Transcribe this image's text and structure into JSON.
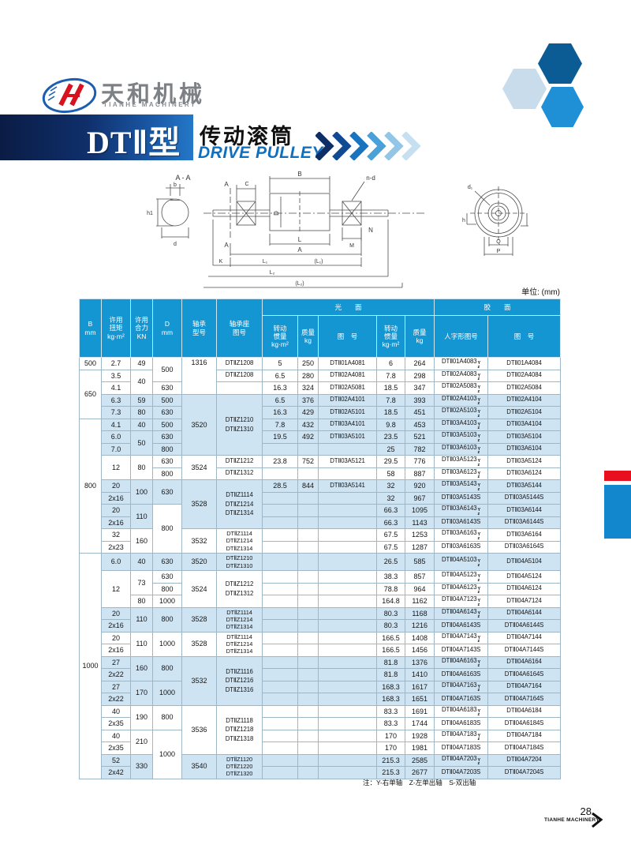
{
  "page": {
    "unit_label": "单位: (mm)",
    "note": "注：Y-右单轴　Z-左单出轴　S-双出轴",
    "page_number": "28",
    "footer_brand": "TIANHE MACHINERY"
  },
  "logo": {
    "name_cn": "天和机械",
    "name_en": "TIANHE MACHINERY"
  },
  "banner": {
    "model": "DTⅡ型",
    "product_cn": "传动滚筒",
    "product_en": "DRIVE PULLEY"
  },
  "drawing": {
    "labels": {
      "section": "A - A",
      "b": "b",
      "h1": "h1",
      "d": "d",
      "a_top": "A",
      "a_bottom": "A",
      "c": "C",
      "bdim": "B",
      "nd": "n-d",
      "ddim": "D",
      "n": "N",
      "m": "M",
      "l": "L",
      "abig": "A",
      "k": "K",
      "l1": "L₁",
      "l1p": "(L₁)",
      "l2": "L₂",
      "l2p": "(L₂)",
      "d1": "d₁",
      "h": "h",
      "hcap": "H",
      "q": "Q",
      "p": "P"
    }
  },
  "table": {
    "header": {
      "b": "B\nmm",
      "torque": "许用\n扭矩\nkg·m²",
      "force": "许用\n合力\nKN",
      "d": "D\nmm",
      "bearing": "轴承\n型号",
      "seat": "轴承座\n图号",
      "group_smooth": "光　　面",
      "group_rubber": "胶　　面",
      "inertia": "转动\n惯量\nkg·m²",
      "mass": "质量\nkg",
      "dwg": "图　号",
      "inertia2": "转动\n惯量\nkg·m²",
      "mass2": "质量\nkg",
      "herringbone": "人字形图号",
      "dwg2": "图　号"
    },
    "rows": [
      {
        "cells": [
          "500",
          "2.7",
          "49",
          {
            "t": "500",
            "rs": 2
          },
          {
            "t": "1316",
            "rs": 3,
            "top": true
          },
          "DTⅡZ1208",
          "5",
          "250",
          "DTⅡ01A4081",
          "6",
          "264",
          {
            "t": "DTⅡ01A4083",
            "yz": true
          },
          "DTⅡ01A4084"
        ]
      },
      {
        "sep": true,
        "cells": [
          {
            "t": "650",
            "rs": 4,
            "w": true
          },
          "3.5",
          {
            "t": "40",
            "rs": 2
          },
          "DTⅡZ1208",
          "6.5",
          "280",
          "DTⅡ02A4081",
          "7.8",
          "298",
          {
            "t": "DTⅡ02A4083",
            "yz": true
          },
          "DTⅡ02A4084"
        ]
      },
      {
        "cells": [
          "4.1",
          "630",
          "",
          "16.3",
          "324",
          "DTⅡ02A5081",
          "18.5",
          "347",
          {
            "t": "DTⅡ02A5083",
            "yz": true
          },
          "DTⅡ02A5084"
        ]
      },
      {
        "shade": true,
        "cells": [
          "6.3",
          "59",
          "500",
          {
            "t": "3520",
            "rs": 5
          },
          {
            "t": "DTⅡZ1210\nDTⅡZ1310",
            "rs": 5,
            "ml": true
          },
          "6.5",
          "376",
          "DTⅡ02A4101",
          "7.8",
          "393",
          {
            "t": "DTⅡ02A4103",
            "yz": true
          },
          "DTⅡ02A4104"
        ]
      },
      {
        "shade": true,
        "cells": [
          "7.3",
          "80",
          "630",
          "16.3",
          "429",
          "DTⅡ02A5101",
          "18.5",
          "451",
          {
            "t": "DTⅡ02A5103",
            "yz": true
          },
          "DTⅡ02A5104"
        ]
      },
      {
        "shade": true,
        "sep": true,
        "cells": [
          {
            "t": "800",
            "rs": 11,
            "w": true
          },
          "4.1",
          "40",
          "500",
          "7.8",
          "432",
          "DTⅡ03A4101",
          "9.8",
          "453",
          {
            "t": "DTⅡ03A4103",
            "yz": true
          },
          "DTⅡ03A4104"
        ]
      },
      {
        "shade": true,
        "cells": [
          "6.0",
          {
            "t": "50",
            "rs": 2
          },
          "630",
          "19.5",
          "492",
          "DTⅡ03A5101",
          "23.5",
          "521",
          {
            "t": "DTⅡ03A5103",
            "yz": true
          },
          "DTⅡ03A5104"
        ]
      },
      {
        "shade": true,
        "cells": [
          "7.0",
          "800",
          "",
          "",
          "",
          "25",
          "782",
          {
            "t": "DTⅡ03A6103",
            "yz": true
          },
          "DTⅡ03A6104"
        ]
      },
      {
        "cells": [
          {
            "t": "12",
            "rs": 2
          },
          {
            "t": "80",
            "rs": 2
          },
          "630",
          {
            "t": "3524",
            "rs": 2
          },
          "DTⅡZ1212",
          "23.8",
          "752",
          "DTⅡ03A5121",
          "29.5",
          "776",
          {
            "t": "DTⅡ03A5123",
            "yz": true
          },
          "DTⅡ03A5124"
        ]
      },
      {
        "cells": [
          "800",
          "DTⅡZ1312",
          "",
          "",
          "",
          "58",
          "887",
          {
            "t": "DTⅡ03A6123",
            "yz": true
          },
          "DTⅡ03A6124"
        ]
      },
      {
        "shade": true,
        "cells": [
          "20",
          {
            "t": "100",
            "rs": 2
          },
          {
            "t": "630",
            "rs": 2
          },
          {
            "t": "3528",
            "rs": 4
          },
          {
            "t": "DTⅡZ1114\nDTⅡZ1214\nDTⅡZ1314",
            "rs": 4,
            "ml": true
          },
          "28.5",
          "844",
          "DTⅡ03A5141",
          "32",
          "920",
          {
            "t": "DTⅡ03A5143",
            "yz": true
          },
          "DTⅡ03A5144"
        ]
      },
      {
        "shade": true,
        "cells": [
          "2x16",
          "",
          "",
          "",
          "32",
          "967",
          "DTⅡ03A5143S",
          "DTⅡ03A5144S"
        ]
      },
      {
        "shade": true,
        "cells": [
          "20",
          {
            "t": "110",
            "rs": 2
          },
          {
            "t": "800",
            "rs": 4,
            "w": true
          },
          "",
          "",
          "",
          "66.3",
          "1095",
          {
            "t": "DTⅡ03A6143",
            "yz": true
          },
          "DTⅡ03A6144"
        ]
      },
      {
        "shade": true,
        "cells": [
          "2x16",
          "",
          "",
          "",
          "66.3",
          "1143",
          "DTⅡ03A6143S",
          "DTⅡ03A6144S"
        ]
      },
      {
        "cells": [
          "32",
          {
            "t": "160",
            "rs": 2
          },
          {
            "t": "3532",
            "rs": 2
          },
          {
            "t": "DTⅡZ1114\nDTⅡZ1214\nDTⅡZ1314",
            "rs": 2,
            "ml": true,
            "tight": true
          },
          "",
          "",
          "",
          "67.5",
          "1253",
          {
            "t": "DTⅡ03A6163",
            "yz": true
          },
          "DTⅡ03A6164"
        ]
      },
      {
        "cells": [
          "2x23",
          "",
          "",
          "",
          "67.5",
          "1287",
          "DTⅡ03A6163S",
          "DTⅡ03A6164S"
        ]
      },
      {
        "shade": true,
        "sep": true,
        "tall": true,
        "cells": [
          {
            "t": "1000",
            "rs": 18,
            "w": true
          },
          "6.0",
          "40",
          "630",
          "3520",
          {
            "t": "DTⅡZ1210\nDTⅡZ1310",
            "ml": true,
            "tight": true
          },
          "",
          "",
          "",
          "26.5",
          "585",
          {
            "t": "DTⅡ04A5103",
            "yz": true
          },
          "DTⅡ04A5104"
        ]
      },
      {
        "cells": [
          {
            "t": "12",
            "rs": 3
          },
          {
            "t": "73",
            "rs": 2
          },
          "630",
          {
            "t": "3524",
            "rs": 3
          },
          {
            "t": "DTⅡZ1212\nDTⅡZ1312",
            "rs": 3,
            "ml": true
          },
          "",
          "",
          "",
          "38.3",
          "857",
          {
            "t": "DTⅡ04A5123",
            "yz": true
          },
          "DTⅡ04A5124"
        ]
      },
      {
        "cells": [
          "800",
          "",
          "",
          "",
          "78.8",
          "964",
          {
            "t": "DTⅡ04A6123",
            "yz": true
          },
          "DTⅡ04A6124"
        ]
      },
      {
        "cells": [
          "80",
          "1000",
          "",
          "",
          "",
          "164.8",
          "1162",
          {
            "t": "DTⅡ04A7123",
            "yz": true
          },
          "DTⅡ04A7124"
        ]
      },
      {
        "shade": true,
        "cells": [
          "20",
          {
            "t": "110",
            "rs": 2
          },
          {
            "t": "800",
            "rs": 2
          },
          {
            "t": "3528",
            "rs": 2
          },
          {
            "t": "DTⅡZ1114\nDTⅡZ1214\nDTⅡZ1314",
            "rs": 2,
            "ml": true,
            "tight": true
          },
          "",
          "",
          "",
          "80.3",
          "1168",
          {
            "t": "DTⅡ04A6143",
            "yz": true
          },
          "DTⅡ04A6144"
        ]
      },
      {
        "shade": true,
        "cells": [
          "2x16",
          "",
          "",
          "",
          "80.3",
          "1216",
          "DTⅡ04A6143S",
          "DTⅡ04A6144S"
        ]
      },
      {
        "cells": [
          "20",
          {
            "t": "110",
            "rs": 2
          },
          {
            "t": "1000",
            "rs": 2
          },
          {
            "t": "3528",
            "rs": 2
          },
          {
            "t": "DTⅡZ1114\nDTⅡZ1214\nDTⅡZ1314",
            "rs": 2,
            "ml": true,
            "tight": true
          },
          "",
          "",
          "",
          "166.5",
          "1408",
          {
            "t": "DTⅡ04A7143",
            "yz": true
          },
          "DTⅡ04A7144"
        ]
      },
      {
        "cells": [
          "2x16",
          "",
          "",
          "",
          "166.5",
          "1456",
          "DTⅡ04A7143S",
          "DTⅡ04A7144S"
        ]
      },
      {
        "shade": true,
        "cells": [
          "27",
          {
            "t": "160",
            "rs": 2
          },
          {
            "t": "800",
            "rs": 2
          },
          {
            "t": "3532",
            "rs": 4
          },
          {
            "t": "DTⅡZ1116\nDTⅡZ1216\nDTⅡZ1316",
            "rs": 4,
            "ml": true
          },
          "",
          "",
          "",
          "81.8",
          "1376",
          {
            "t": "DTⅡ04A6163",
            "yz": true
          },
          "DTⅡ04A6164"
        ]
      },
      {
        "shade": true,
        "cells": [
          "2x22",
          "",
          "",
          "",
          "81.8",
          "1410",
          "DTⅡ04A6163S",
          "DTⅡ04A6164S"
        ]
      },
      {
        "shade": true,
        "cells": [
          "27",
          {
            "t": "170",
            "rs": 2
          },
          {
            "t": "1000",
            "rs": 2
          },
          "",
          "",
          "",
          "168.3",
          "1617",
          {
            "t": "DTⅡ04A7163",
            "yz": true
          },
          "DTⅡ04A7164"
        ]
      },
      {
        "shade": true,
        "cells": [
          "2x22",
          "",
          "",
          "",
          "168.3",
          "1651",
          "DTⅡ04A7163S",
          "DTⅡ04A7164S"
        ]
      },
      {
        "cells": [
          "40",
          {
            "t": "190",
            "rs": 2
          },
          {
            "t": "800",
            "rs": 2
          },
          {
            "t": "3536",
            "rs": 4
          },
          {
            "t": "DTⅡZ1118\nDTⅡZ1218\nDTⅡZ1318",
            "rs": 4,
            "ml": true
          },
          "",
          "",
          "",
          "83.3",
          "1691",
          {
            "t": "DTⅡ04A6183",
            "yz": true
          },
          "DTⅡ04A6184"
        ]
      },
      {
        "cells": [
          "2x35",
          "",
          "",
          "",
          "83.3",
          "1744",
          "DTⅡ04A6183S",
          "DTⅡ04A6184S"
        ]
      },
      {
        "cells": [
          "40",
          {
            "t": "210",
            "rs": 2
          },
          {
            "t": "1000",
            "rs": 4
          },
          "",
          "",
          "",
          "170",
          "1928",
          {
            "t": "DTⅡ04A7183",
            "yz": true
          },
          "DTⅡ04A7184"
        ]
      },
      {
        "cells": [
          "2x35",
          "",
          "",
          "",
          "170",
          "1981",
          "DTⅡ04A7183S",
          "DTⅡ04A7184S"
        ]
      },
      {
        "shade": true,
        "cells": [
          "52",
          {
            "t": "330",
            "rs": 2
          },
          {
            "t": "3540",
            "rs": 2
          },
          {
            "t": "DTⅡZ1120\nDTⅡZ1220\nDTⅡZ1320",
            "rs": 2,
            "ml": true,
            "tight": true
          },
          "",
          "",
          "",
          "215.3",
          "2585",
          {
            "t": "DTⅡ04A7203",
            "yz": true
          },
          "DTⅡ04A7204"
        ]
      },
      {
        "shade": true,
        "cells": [
          "2x42",
          "",
          "",
          "",
          "215.3",
          "2677",
          "DTⅡ04A7203S",
          "DTⅡ04A7204S"
        ]
      }
    ]
  }
}
